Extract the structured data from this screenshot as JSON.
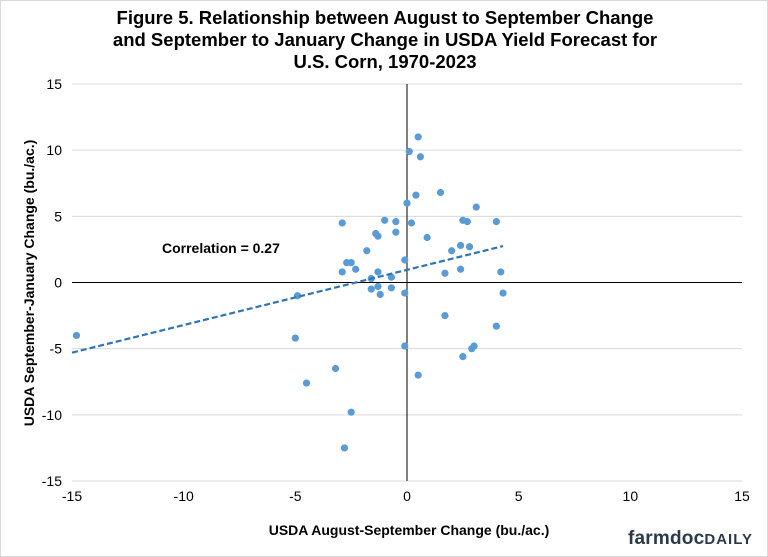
{
  "chart_data": {
    "type": "scatter",
    "title_lines": [
      "Figure 5. Relationship between August to September Change",
      "and September to January Change in USDA Yield Forecast for",
      "U.S. Corn, 1970-2023"
    ],
    "xlabel": "USDA August-September Change (bu./ac.)",
    "ylabel": "USDA September-January Change (bu./ac.)",
    "xlim": [
      -15,
      15
    ],
    "ylim": [
      -15,
      15
    ],
    "x_ticks": [
      -15,
      -10,
      -5,
      0,
      5,
      10,
      15
    ],
    "y_ticks": [
      -15,
      -10,
      -5,
      0,
      5,
      10,
      15
    ],
    "grid": "horizontal",
    "series": [
      {
        "color": "#5b9bd5",
        "points": [
          [
            -14.8,
            -4.0
          ],
          [
            -5.0,
            -4.2
          ],
          [
            -4.9,
            -1.0
          ],
          [
            -4.5,
            -7.6
          ],
          [
            -3.2,
            -6.5
          ],
          [
            -2.9,
            4.5
          ],
          [
            -2.9,
            0.8
          ],
          [
            -2.8,
            -12.5
          ],
          [
            -2.7,
            1.5
          ],
          [
            -2.5,
            1.5
          ],
          [
            -2.5,
            -9.8
          ],
          [
            -2.3,
            1.0
          ],
          [
            -1.8,
            2.4
          ],
          [
            -1.6,
            0.3
          ],
          [
            -1.6,
            -0.5
          ],
          [
            -1.4,
            3.7
          ],
          [
            -1.3,
            3.5
          ],
          [
            -1.3,
            0.8
          ],
          [
            -1.3,
            -0.3
          ],
          [
            -1.2,
            -0.9
          ],
          [
            -1.0,
            4.7
          ],
          [
            -0.7,
            0.4
          ],
          [
            -0.7,
            -0.4
          ],
          [
            -0.5,
            4.6
          ],
          [
            -0.5,
            3.8
          ],
          [
            -0.1,
            1.7
          ],
          [
            0.0,
            6.0
          ],
          [
            -0.1,
            -0.8
          ],
          [
            -0.1,
            -4.8
          ],
          [
            0.1,
            9.9
          ],
          [
            0.2,
            4.5
          ],
          [
            0.4,
            6.6
          ],
          [
            0.5,
            11.0
          ],
          [
            0.6,
            9.5
          ],
          [
            0.5,
            -7.0
          ],
          [
            0.9,
            3.4
          ],
          [
            1.5,
            6.8
          ],
          [
            1.7,
            0.7
          ],
          [
            1.7,
            -2.5
          ],
          [
            2.0,
            2.4
          ],
          [
            2.4,
            2.8
          ],
          [
            2.4,
            1.0
          ],
          [
            2.5,
            4.7
          ],
          [
            2.7,
            4.6
          ],
          [
            2.5,
            -5.6
          ],
          [
            2.8,
            2.7
          ],
          [
            2.9,
            -5.0
          ],
          [
            3.0,
            -4.8
          ],
          [
            3.1,
            5.7
          ],
          [
            4.0,
            4.6
          ],
          [
            4.0,
            -3.3
          ],
          [
            4.2,
            0.8
          ],
          [
            4.3,
            -0.8
          ]
        ]
      }
    ],
    "trendline": {
      "style": "dashed",
      "color": "#2e75b6",
      "from": [
        -15,
        -5.3
      ],
      "to": [
        4.3,
        2.75
      ]
    },
    "annotation": "Correlation = 0.27"
  },
  "branding": {
    "text_main": "farmdoc",
    "text_accent": "DAILY"
  }
}
